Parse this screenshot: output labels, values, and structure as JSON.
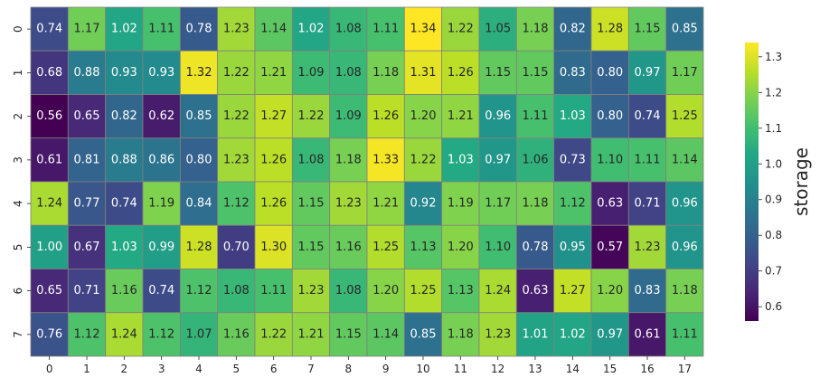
{
  "chart_data": {
    "type": "heatmap",
    "title": "",
    "xlabel": "",
    "ylabel": "",
    "x_ticks": [
      "0",
      "1",
      "2",
      "3",
      "4",
      "5",
      "6",
      "7",
      "8",
      "9",
      "10",
      "11",
      "12",
      "13",
      "14",
      "15",
      "16",
      "17"
    ],
    "y_ticks": [
      "0",
      "1",
      "2",
      "3",
      "4",
      "5",
      "6",
      "7"
    ],
    "values": [
      [
        0.74,
        1.17,
        1.02,
        1.11,
        0.78,
        1.23,
        1.14,
        1.02,
        1.08,
        1.11,
        1.34,
        1.22,
        1.05,
        1.18,
        0.82,
        1.28,
        1.15,
        0.85
      ],
      [
        0.68,
        0.88,
        0.93,
        0.93,
        1.32,
        1.22,
        1.21,
        1.09,
        1.08,
        1.18,
        1.31,
        1.26,
        1.15,
        1.15,
        0.83,
        0.8,
        0.97,
        1.17
      ],
      [
        0.56,
        0.65,
        0.82,
        0.62,
        0.85,
        1.22,
        1.27,
        1.22,
        1.09,
        1.26,
        1.2,
        1.21,
        0.96,
        1.11,
        1.03,
        0.8,
        0.74,
        1.25
      ],
      [
        0.61,
        0.81,
        0.88,
        0.86,
        0.8,
        1.23,
        1.26,
        1.08,
        1.18,
        1.33,
        1.22,
        1.03,
        0.97,
        1.06,
        0.73,
        1.1,
        1.11,
        1.14
      ],
      [
        1.24,
        0.77,
        0.74,
        1.19,
        0.84,
        1.12,
        1.26,
        1.15,
        1.23,
        1.21,
        0.92,
        1.19,
        1.17,
        1.18,
        1.12,
        0.63,
        0.71,
        0.96
      ],
      [
        1.0,
        0.67,
        1.03,
        0.99,
        1.28,
        0.7,
        1.3,
        1.15,
        1.16,
        1.25,
        1.13,
        1.2,
        1.1,
        0.78,
        0.95,
        0.57,
        1.23,
        0.96
      ],
      [
        0.65,
        0.71,
        1.16,
        0.74,
        1.12,
        1.08,
        1.11,
        1.23,
        1.08,
        1.2,
        1.25,
        1.13,
        1.24,
        0.63,
        1.27,
        1.2,
        0.83,
        1.18
      ],
      [
        0.76,
        1.12,
        1.24,
        1.12,
        1.07,
        1.16,
        1.22,
        1.21,
        1.15,
        1.14,
        0.85,
        1.18,
        1.23,
        1.01,
        1.02,
        0.97,
        0.61,
        1.11
      ]
    ],
    "colormap": "viridis",
    "vmin": 0.56,
    "vmax": 1.34,
    "colorbar": {
      "label": "storage",
      "ticks": [
        0.6,
        0.7,
        0.8,
        0.9,
        1.0,
        1.1,
        1.2,
        1.3
      ],
      "tick_labels": [
        "0.6",
        "0.7",
        "0.8",
        "0.9",
        "1.0",
        "1.1",
        "1.2",
        "1.3"
      ]
    },
    "annotations": true,
    "value_format": "2 decimals",
    "cell_border_color": "#808080"
  }
}
